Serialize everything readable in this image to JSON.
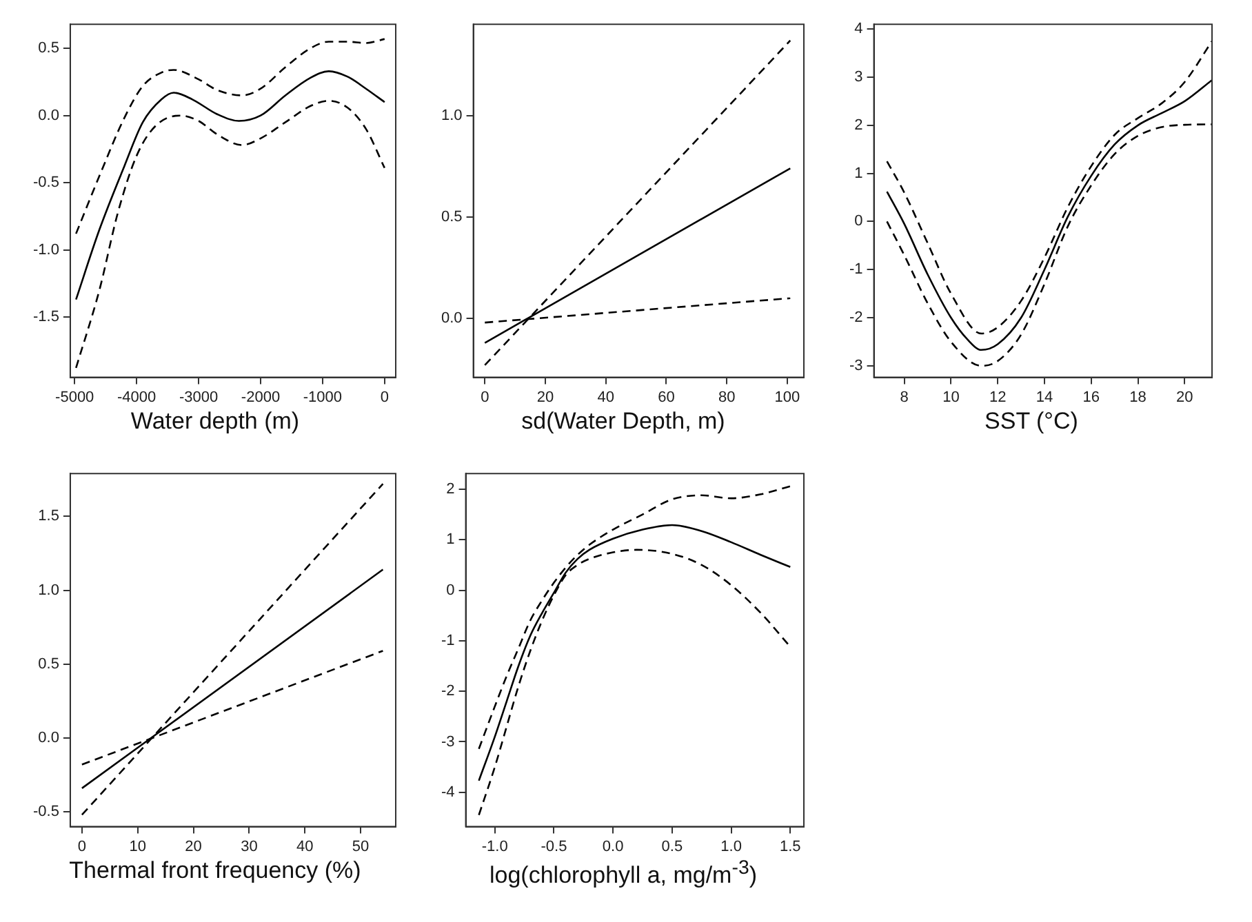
{
  "chart_data": [
    {
      "type": "line",
      "xlabel": "Water depth (m)",
      "xlim": [
        -5070,
        180
      ],
      "ylim": [
        -1.95,
        0.68
      ],
      "xticks": [
        -5000,
        -4000,
        -3000,
        -2000,
        -1000,
        0
      ],
      "yticks": [
        -1.5,
        {
          "value": -1,
          "label": "-1.0"
        },
        -0.5,
        {
          "value": 0,
          "label": "0.0"
        },
        0.5
      ],
      "grid": false,
      "legend": false,
      "series": [
        {
          "color": "#000000",
          "line_style": "solid",
          "x": [
            -4977,
            -4600,
            -4200,
            -3900,
            -3600,
            -3400,
            -3100,
            -2700,
            -2350,
            -2000,
            -1600,
            -1200,
            -900,
            -600,
            -300,
            0
          ],
          "values": [
            -1.37,
            -0.85,
            -0.38,
            -0.05,
            0.12,
            0.17,
            0.12,
            0.01,
            -0.04,
            0.0,
            0.15,
            0.28,
            0.33,
            0.29,
            0.2,
            0.1
          ]
        },
        {
          "color": "#000000",
          "line_style": "dashed",
          "x": [
            -4977,
            -4600,
            -4200,
            -3900,
            -3600,
            -3400,
            -3000,
            -2700,
            -2300,
            -2000,
            -1600,
            -1200,
            -900,
            -600,
            -300,
            0
          ],
          "values": [
            -0.88,
            -0.45,
            -0.02,
            0.22,
            0.32,
            0.34,
            0.27,
            0.19,
            0.15,
            0.2,
            0.36,
            0.5,
            0.55,
            0.55,
            0.54,
            0.57
          ]
        },
        {
          "color": "#000000",
          "line_style": "dashed",
          "x": [
            -4977,
            -4600,
            -4300,
            -4000,
            -3700,
            -3300,
            -3000,
            -2700,
            -2300,
            -2000,
            -1600,
            -1200,
            -900,
            -600,
            -300,
            0
          ],
          "values": [
            -1.88,
            -1.3,
            -0.72,
            -0.3,
            -0.08,
            0.0,
            -0.04,
            -0.14,
            -0.22,
            -0.17,
            -0.05,
            0.07,
            0.11,
            0.06,
            -0.1,
            -0.39
          ]
        }
      ]
    },
    {
      "type": "line",
      "xlabel": "sd(Water Depth, m)",
      "xlim": [
        -3.8,
        105.5
      ],
      "ylim": [
        -0.29,
        1.45
      ],
      "xticks": [
        0,
        20,
        40,
        60,
        80,
        100
      ],
      "yticks": [
        {
          "value": 0,
          "label": "0.0"
        },
        0.5,
        {
          "value": 1,
          "label": "1.0"
        }
      ],
      "grid": false,
      "legend": false,
      "series": [
        {
          "color": "#000000",
          "line_style": "solid",
          "x": [
            0,
            101
          ],
          "values": [
            -0.12,
            0.74
          ]
        },
        {
          "color": "#000000",
          "line_style": "dashed",
          "x": [
            0,
            101
          ],
          "values": [
            -0.23,
            1.37
          ]
        },
        {
          "color": "#000000",
          "line_style": "dashed",
          "x": [
            0,
            101
          ],
          "values": [
            -0.02,
            0.1
          ]
        }
      ]
    },
    {
      "type": "line",
      "xlabel": "SST (°C)",
      "xlim": [
        6.7,
        21.17
      ],
      "ylim": [
        -3.24,
        4.1
      ],
      "xticks": [
        8,
        10,
        12,
        14,
        16,
        18,
        20
      ],
      "yticks": [
        -3,
        -2,
        -1,
        0,
        1,
        2,
        3,
        4
      ],
      "grid": false,
      "legend": false,
      "series": [
        {
          "color": "#000000",
          "line_style": "solid",
          "x": [
            7.26,
            8,
            9,
            10,
            10.7,
            11.3,
            12,
            13,
            14,
            15,
            16,
            17,
            18,
            19,
            20,
            21.17
          ],
          "values": [
            0.62,
            -0.05,
            -1.1,
            -2.0,
            -2.45,
            -2.67,
            -2.55,
            -2.0,
            -1.0,
            0.1,
            0.95,
            1.6,
            2.0,
            2.25,
            2.5,
            2.94
          ]
        },
        {
          "color": "#000000",
          "line_style": "dashed",
          "x": [
            7.26,
            8,
            9,
            10,
            11.3,
            12,
            13,
            14,
            15,
            16,
            17,
            18,
            19,
            20,
            21.17
          ],
          "values": [
            1.25,
            0.6,
            -0.45,
            -1.5,
            -2.33,
            -2.2,
            -1.65,
            -0.75,
            0.3,
            1.15,
            1.8,
            2.15,
            2.45,
            2.9,
            3.75
          ]
        },
        {
          "color": "#000000",
          "line_style": "dashed",
          "x": [
            7.26,
            8,
            9,
            10,
            11.3,
            12,
            13,
            14,
            15,
            16,
            17,
            18,
            19,
            20,
            21.17
          ],
          "values": [
            0.0,
            -0.7,
            -1.7,
            -2.5,
            -3.0,
            -2.9,
            -2.35,
            -1.3,
            -0.1,
            0.75,
            1.4,
            1.78,
            1.96,
            2.01,
            2.02
          ]
        }
      ]
    },
    {
      "type": "line",
      "xlabel": "Thermal front frequency (%)",
      "xlim": [
        -2.1,
        56.3
      ],
      "ylim": [
        -0.6,
        1.79
      ],
      "xticks": [
        0,
        10,
        20,
        30,
        40,
        50
      ],
      "yticks": [
        -0.5,
        {
          "value": 0,
          "label": "0.0"
        },
        0.5,
        {
          "value": 1,
          "label": "1.0"
        },
        1.5
      ],
      "grid": false,
      "legend": false,
      "series": [
        {
          "color": "#000000",
          "line_style": "solid",
          "x": [
            0,
            54
          ],
          "values": [
            -0.34,
            1.14
          ]
        },
        {
          "color": "#000000",
          "line_style": "dashed",
          "x": [
            0,
            54
          ],
          "values": [
            -0.52,
            1.72
          ]
        },
        {
          "color": "#000000",
          "line_style": "dashed",
          "x": [
            0,
            54
          ],
          "values": [
            -0.18,
            0.59
          ]
        }
      ]
    },
    {
      "type": "line",
      "xlabel": "log(chlorophyll a, mg/m$^{-3}$)",
      "xlim": [
        -1.246,
        1.615
      ],
      "ylim": [
        -4.68,
        2.31
      ],
      "xticks": [
        {
          "value": -1,
          "label": "-1.0"
        },
        -0.5,
        {
          "value": 0,
          "label": "0.0"
        },
        0.5,
        {
          "value": 1,
          "label": "1.0"
        },
        1.5
      ],
      "yticks": [
        -4,
        -3,
        -2,
        -1,
        0,
        1,
        2
      ],
      "grid": false,
      "legend": false,
      "series": [
        {
          "color": "#000000",
          "line_style": "solid",
          "x": [
            -1.135,
            -1.0,
            -0.9,
            -0.8,
            -0.7,
            -0.6,
            -0.5,
            -0.4,
            -0.3,
            -0.2,
            0,
            0.25,
            0.5,
            0.75,
            1.0,
            1.25,
            1.5
          ],
          "values": [
            -3.77,
            -2.9,
            -2.2,
            -1.5,
            -0.9,
            -0.45,
            -0.05,
            0.35,
            0.62,
            0.8,
            1.02,
            1.2,
            1.29,
            1.17,
            0.95,
            0.7,
            0.46
          ]
        },
        {
          "color": "#000000",
          "line_style": "dashed",
          "x": [
            -1.135,
            -1.0,
            -0.9,
            -0.8,
            -0.7,
            -0.6,
            -0.5,
            -0.4,
            -0.3,
            -0.2,
            0,
            0.25,
            0.5,
            0.75,
            1.0,
            1.25,
            1.5
          ],
          "values": [
            -3.14,
            -2.3,
            -1.7,
            -1.15,
            -0.6,
            -0.2,
            0.15,
            0.45,
            0.7,
            0.9,
            1.2,
            1.5,
            1.8,
            1.88,
            1.82,
            1.9,
            2.06
          ]
        },
        {
          "color": "#000000",
          "line_style": "dashed",
          "x": [
            -1.135,
            -1.0,
            -0.9,
            -0.8,
            -0.7,
            -0.6,
            -0.5,
            -0.4,
            -0.3,
            -0.2,
            0,
            0.2,
            0.5,
            0.75,
            1.0,
            1.25,
            1.5
          ],
          "values": [
            -4.45,
            -3.5,
            -2.7,
            -1.9,
            -1.2,
            -0.6,
            -0.1,
            0.3,
            0.5,
            0.62,
            0.75,
            0.8,
            0.72,
            0.5,
            0.1,
            -0.45,
            -1.12
          ]
        }
      ]
    }
  ]
}
